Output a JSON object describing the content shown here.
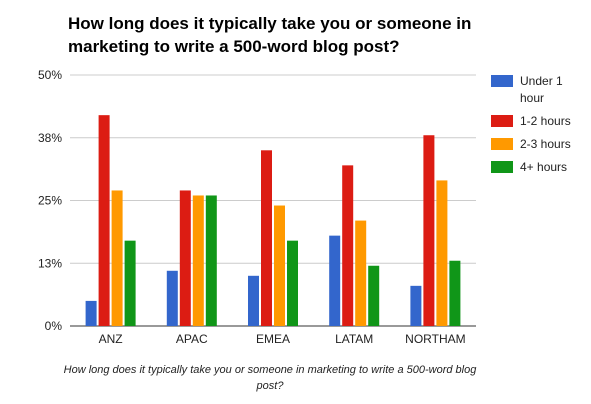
{
  "chart_data": {
    "type": "bar",
    "title": "How long does it typically take you or someone in marketing to write a 500-word blog post?",
    "xlabel": "How long does it typically take you or someone in marketing to write a 500-word blog post?",
    "ylabel": "",
    "categories": [
      "ANZ",
      "APAC",
      "EMEA",
      "LATAM",
      "NORTHAM"
    ],
    "ylim": [
      0,
      50
    ],
    "yticks": [
      0,
      12.5,
      25,
      37.5,
      50
    ],
    "ytick_labels": [
      "0%",
      "13%",
      "25%",
      "38%",
      "50%"
    ],
    "grid": true,
    "legend_position": "right",
    "series": [
      {
        "name": "Under 1 hour",
        "color": "#3366cc",
        "values": [
          5,
          11,
          10,
          18,
          8
        ]
      },
      {
        "name": "1-2 hours",
        "color": "#dc1c13",
        "values": [
          42,
          27,
          35,
          32,
          38
        ]
      },
      {
        "name": "2-3 hours",
        "color": "#ff9900",
        "values": [
          27,
          26,
          24,
          21,
          29
        ]
      },
      {
        "name": "4+ hours",
        "color": "#109618",
        "values": [
          17,
          26,
          17,
          12,
          13
        ]
      }
    ]
  }
}
